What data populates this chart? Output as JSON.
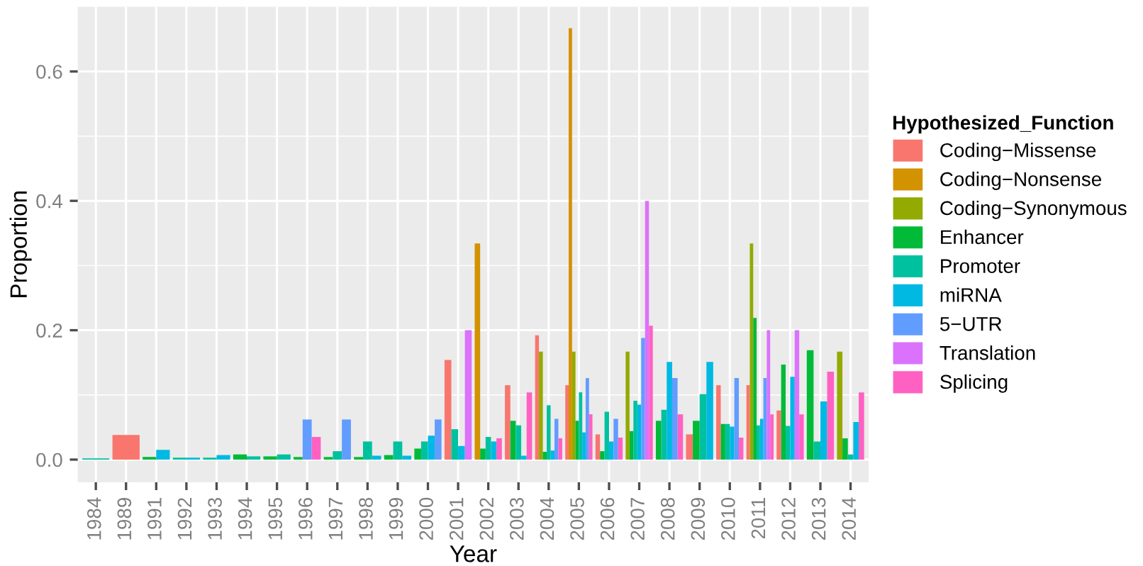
{
  "chart_data": {
    "type": "bar",
    "xlabel": "Year",
    "ylabel": "Proportion",
    "legend_title": "Hypothesized_Function",
    "legend": "right",
    "grid": true,
    "categories": [
      "1984",
      "1989",
      "1991",
      "1992",
      "1993",
      "1994",
      "1995",
      "1996",
      "1997",
      "1998",
      "1999",
      "2000",
      "2001",
      "2002",
      "2003",
      "2004",
      "2005",
      "2006",
      "2007",
      "2008",
      "2009",
      "2010",
      "2011",
      "2012",
      "2013",
      "2014"
    ],
    "ylim": [
      -0.035,
      0.7
    ],
    "yticks": [
      {
        "value": 0,
        "label": "0.0"
      },
      {
        "value": 0.2,
        "label": "0.2"
      },
      {
        "value": 0.4,
        "label": "0.4"
      },
      {
        "value": 0.6,
        "label": "0.6"
      }
    ],
    "series": [
      {
        "name": "Coding−Missense",
        "color": "#f8766d",
        "values": [
          null,
          0.038,
          null,
          null,
          null,
          null,
          null,
          null,
          null,
          null,
          null,
          null,
          0.154,
          null,
          0.115,
          0.192,
          0.115,
          0.039,
          null,
          null,
          0.039,
          0.115,
          0.115,
          0.076,
          null,
          null
        ]
      },
      {
        "name": "Coding−Nonsense",
        "color": "#d39200",
        "values": [
          null,
          null,
          null,
          null,
          null,
          null,
          null,
          null,
          null,
          null,
          null,
          null,
          null,
          0.334,
          null,
          null,
          0.667,
          null,
          null,
          null,
          null,
          null,
          null,
          null,
          null,
          null
        ]
      },
      {
        "name": "Coding−Synonymous",
        "color": "#93aa00",
        "values": [
          null,
          null,
          null,
          null,
          null,
          null,
          null,
          null,
          null,
          null,
          null,
          null,
          null,
          null,
          null,
          0.167,
          0.167,
          null,
          0.167,
          null,
          null,
          null,
          0.334,
          null,
          null,
          0.167
        ]
      },
      {
        "name": "Enhancer",
        "color": "#00ba38",
        "values": [
          null,
          null,
          0.004,
          null,
          null,
          0.008,
          0.005,
          0.004,
          0.004,
          0.004,
          0.007,
          0.017,
          null,
          0.017,
          0.06,
          0.012,
          0.06,
          0.013,
          0.044,
          0.06,
          0.06,
          0.055,
          0.219,
          0.147,
          0.169,
          0.033
        ]
      },
      {
        "name": "Promoter",
        "color": "#00c19f",
        "values": [
          0.002,
          null,
          null,
          0.003,
          0.003,
          0.005,
          0.008,
          null,
          0.013,
          0.028,
          0.028,
          0.028,
          0.047,
          0.035,
          0.053,
          0.084,
          0.104,
          0.074,
          0.091,
          0.077,
          0.101,
          0.055,
          0.053,
          0.052,
          0.028,
          0.008
        ]
      },
      {
        "name": "miRNA",
        "color": "#00b9e3",
        "values": [
          null,
          null,
          0.015,
          0.003,
          0.007,
          null,
          null,
          null,
          null,
          0.006,
          0.006,
          0.037,
          0.021,
          0.028,
          0.006,
          0.014,
          0.042,
          0.028,
          0.085,
          0.151,
          0.151,
          0.051,
          0.063,
          0.128,
          0.09,
          0.058
        ]
      },
      {
        "name": "5−UTR",
        "color": "#619cff",
        "values": [
          null,
          null,
          null,
          null,
          null,
          null,
          null,
          0.062,
          0.062,
          null,
          null,
          0.062,
          null,
          null,
          null,
          0.063,
          0.126,
          0.063,
          0.188,
          0.126,
          null,
          0.126,
          0.126,
          null,
          null,
          null
        ]
      },
      {
        "name": "Translation",
        "color": "#db72fb",
        "values": [
          null,
          null,
          null,
          null,
          null,
          null,
          null,
          null,
          null,
          null,
          null,
          null,
          0.2,
          null,
          null,
          null,
          null,
          null,
          0.4,
          null,
          null,
          null,
          0.2,
          0.2,
          null,
          null
        ]
      },
      {
        "name": "Splicing",
        "color": "#ff61c3",
        "values": [
          null,
          null,
          null,
          null,
          null,
          null,
          null,
          0.035,
          null,
          null,
          null,
          null,
          null,
          0.033,
          0.104,
          0.033,
          0.07,
          0.034,
          0.207,
          0.07,
          null,
          0.034,
          0.07,
          0.07,
          0.136,
          0.104
        ]
      }
    ]
  }
}
